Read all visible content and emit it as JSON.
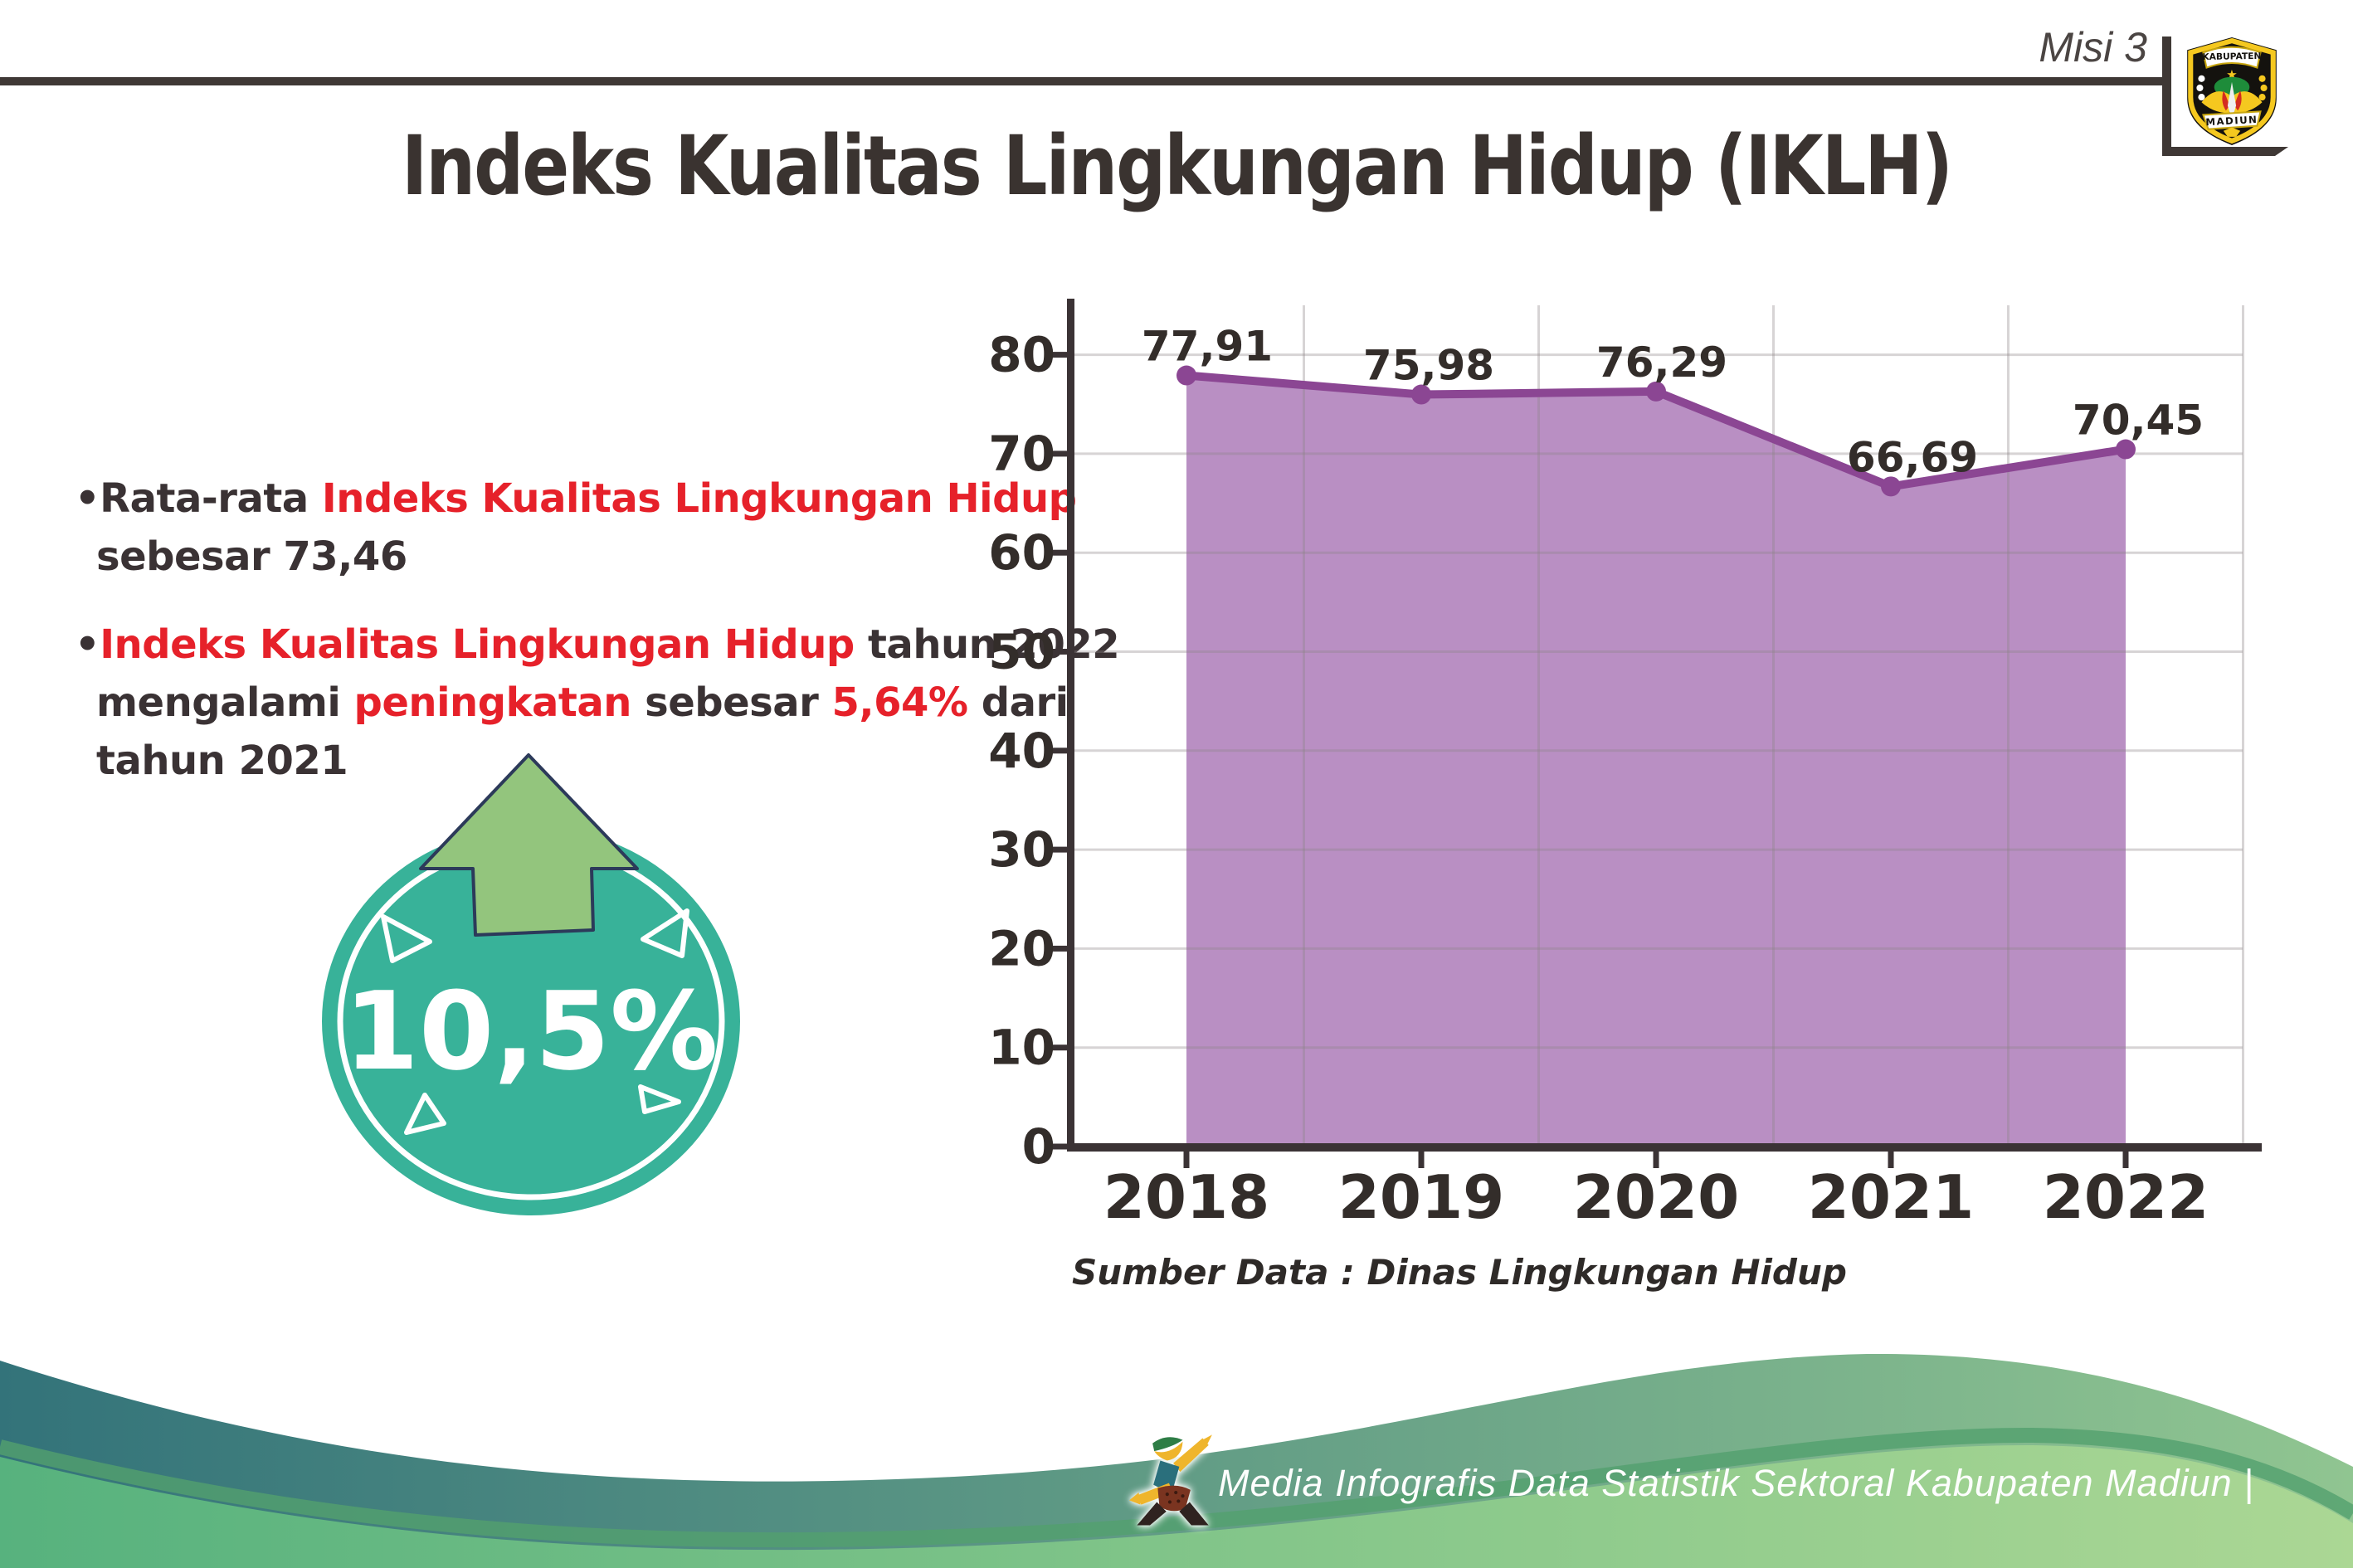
{
  "header": {
    "misi": "Misi 3",
    "title": "Indeks Kualitas Lingkungan Hidup (IKLH)",
    "logo": {
      "top": "KABUPATEN",
      "bottom": "MADIUN"
    }
  },
  "bullets": {
    "items": [
      {
        "lines": [
          [
            {
              "t": "•Rata-rata ",
              "red": false
            },
            {
              "t": "Indeks Kualitas Lingkungan Hidup",
              "red": true
            }
          ],
          [
            {
              "t": "sebesar 73,46",
              "red": false
            }
          ]
        ]
      },
      {
        "lines": [
          [
            {
              "t": "•",
              "red": false
            },
            {
              "t": "Indeks Kualitas Lingkungan Hidup",
              "red": true
            },
            {
              "t": " tahun 2022",
              "red": false
            }
          ],
          [
            {
              "t": "mengalami ",
              "red": false
            },
            {
              "t": "peningkatan",
              "red": true
            },
            {
              "t": " sebesar ",
              "red": false
            },
            {
              "t": "5,64%",
              "red": true
            },
            {
              "t": " dari",
              "red": false
            }
          ],
          [
            {
              "t": "tahun 2021",
              "red": false
            }
          ]
        ]
      }
    ]
  },
  "badge": {
    "value": "10,5%",
    "circle_color": "#38b299",
    "arrow_color": "#93c57d",
    "arrow_outline": "#2c3a5a"
  },
  "chart_data": {
    "type": "area",
    "categories": [
      "2018",
      "2019",
      "2020",
      "2021",
      "2022"
    ],
    "values": [
      77.91,
      75.98,
      76.29,
      66.69,
      70.45
    ],
    "point_labels": [
      "77,91",
      "75,98",
      "76,29",
      "66,69",
      "70,45"
    ],
    "title": "",
    "xlabel": "",
    "ylabel": "",
    "ylim": [
      0,
      85
    ],
    "yticks": [
      0,
      10,
      20,
      30,
      40,
      50,
      60,
      70,
      80
    ],
    "grid": true,
    "legend": false,
    "colors": {
      "fill": "#b98fc3",
      "line": "#8b4693",
      "axis": "#3b3335",
      "grid": "#e0dddd",
      "tick_label": "#332d2a",
      "data_label": "#332d2a"
    },
    "source": "Sumber Data : Dinas Lingkungan Hidup"
  },
  "footer": {
    "credit": "Media Infografis Data Statistik Sektoral Kabupaten Madiun |",
    "teal_left": "#33737a",
    "teal_right": "#90c591",
    "green_left": "#57b27e",
    "green_right": "#abd794"
  }
}
